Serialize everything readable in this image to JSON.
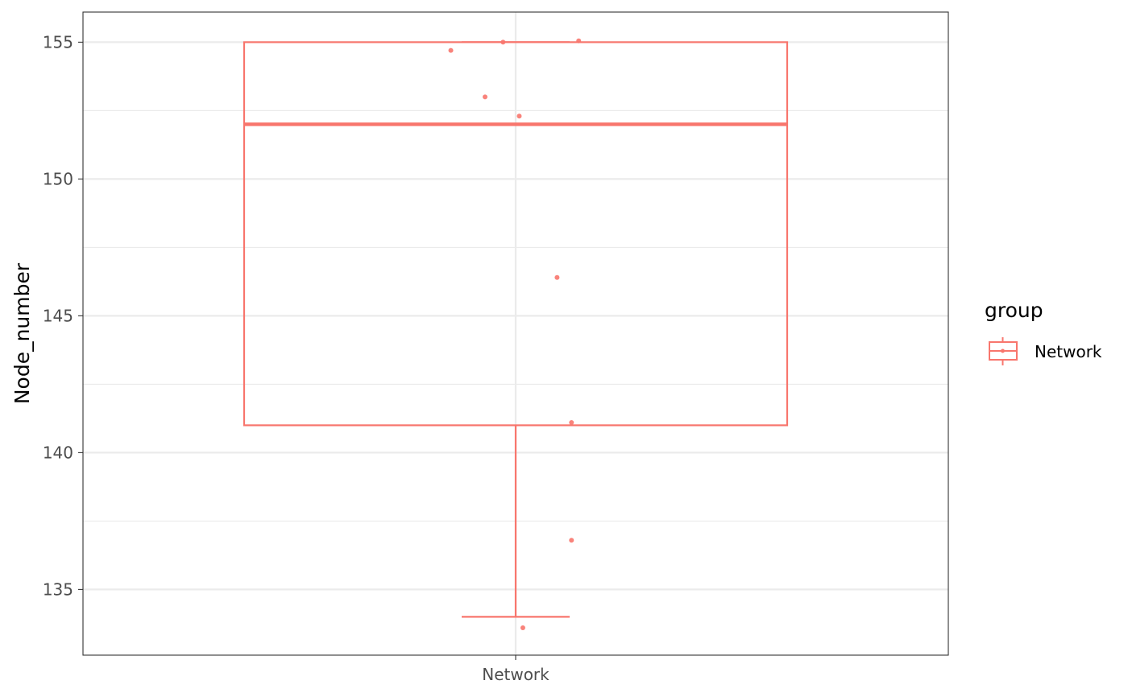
{
  "chart_data": {
    "type": "boxplot",
    "categories": [
      "Network"
    ],
    "ylabel": "Node_number",
    "xlabel": "",
    "ylim": [
      132.6,
      156.1
    ],
    "yticks": [
      135,
      140,
      145,
      150,
      155
    ],
    "grid": true,
    "box": {
      "category": "Network",
      "lower_whisker": 134,
      "q1": 141,
      "median": 152,
      "q3": 155,
      "upper_whisker": 155
    },
    "points": [
      {
        "x_jitter": -0.18,
        "y": 154.7
      },
      {
        "x_jitter": -0.035,
        "y": 155.0
      },
      {
        "x_jitter": 0.175,
        "y": 155.05
      },
      {
        "x_jitter": -0.085,
        "y": 153.0
      },
      {
        "x_jitter": 0.01,
        "y": 152.3
      },
      {
        "x_jitter": 0.115,
        "y": 146.4
      },
      {
        "x_jitter": 0.155,
        "y": 141.1
      },
      {
        "x_jitter": 0.155,
        "y": 136.8
      },
      {
        "x_jitter": 0.02,
        "y": 133.6
      }
    ],
    "legend": {
      "title": "group",
      "entries": [
        {
          "label": "Network"
        }
      ],
      "position": "right"
    }
  },
  "colors": {
    "series": "#F8766D",
    "grid": "#EBEBEB",
    "panel_border": "#333333",
    "tick_text": "#4D4D4D"
  }
}
